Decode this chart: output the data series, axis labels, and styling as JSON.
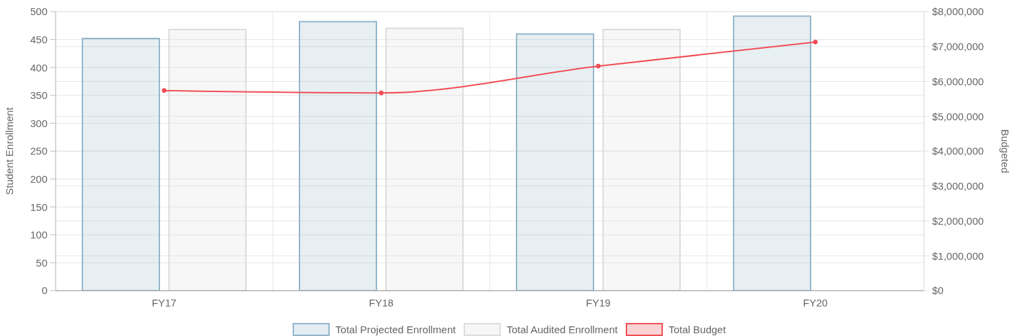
{
  "chart_data": {
    "type": "bar",
    "categories": [
      "FY17",
      "FY18",
      "FY19",
      "FY20"
    ],
    "series": [
      {
        "name": "Total Projected Enrollment",
        "color": "#93b6ca",
        "values": [
          452,
          482,
          460,
          492
        ]
      },
      {
        "name": "Total Audited Enrollment",
        "color": "#dcdcdc",
        "values": [
          468,
          470,
          468,
          null
        ]
      },
      {
        "name": "Total Budget",
        "type": "line",
        "axis": "y2",
        "color": "#f04e55",
        "values": [
          5740000,
          5670000,
          6440000,
          7130000
        ]
      }
    ],
    "ylabel": "Student Enrollment",
    "y2label": "Budgeted",
    "ylim": [
      0,
      500
    ],
    "yticks": [
      0,
      50,
      100,
      150,
      200,
      250,
      300,
      350,
      400,
      450,
      500
    ],
    "y2lim": [
      0,
      8000000
    ],
    "y2ticks": [
      {
        "value": 0,
        "label": "$0"
      },
      {
        "value": 1000000,
        "label": "$1,000,000"
      },
      {
        "value": 2000000,
        "label": "$2,000,000"
      },
      {
        "value": 3000000,
        "label": "$3,000,000"
      },
      {
        "value": 4000000,
        "label": "$4,000,000"
      },
      {
        "value": 5000000,
        "label": "$5,000,000"
      },
      {
        "value": 6000000,
        "label": "$6,000,000"
      },
      {
        "value": 7000000,
        "label": "$7,000,000"
      },
      {
        "value": 8000000,
        "label": "$8,000,000"
      }
    ],
    "grid": true,
    "legend": "bottom",
    "marker": "circle"
  }
}
